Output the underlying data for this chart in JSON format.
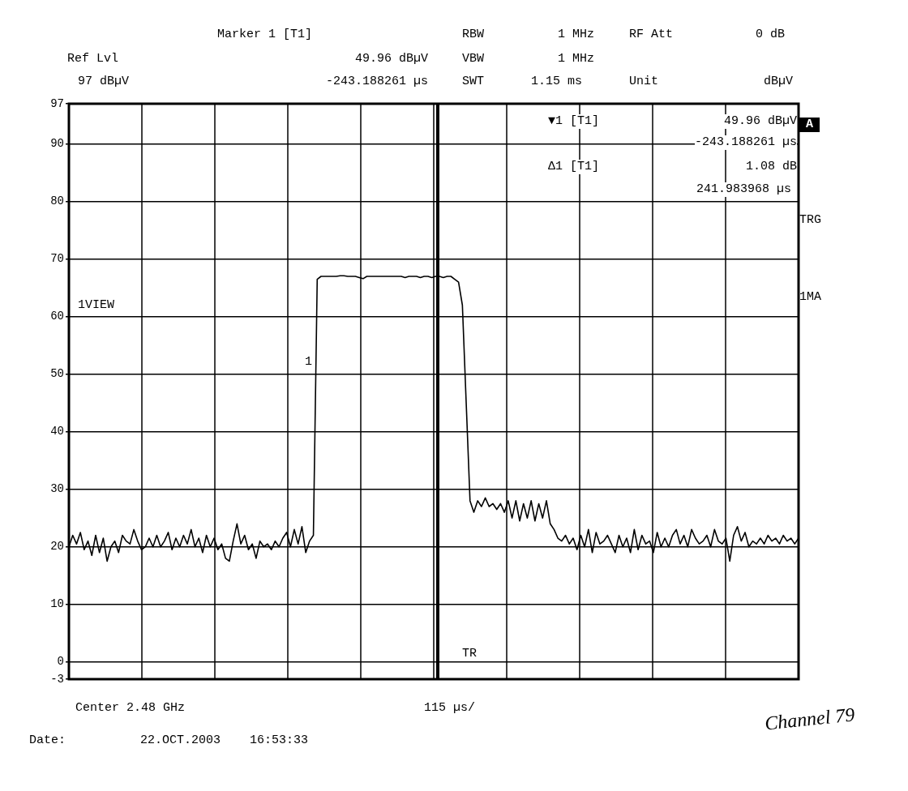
{
  "chart_data": {
    "type": "line",
    "categories": [
      null,
      null,
      null,
      null,
      null,
      null,
      null,
      null,
      null,
      null,
      null,
      null,
      null,
      null,
      null,
      null,
      null,
      null,
      null,
      null,
      null,
      null,
      null,
      null,
      null,
      null,
      null,
      null,
      null,
      null,
      null,
      null,
      null,
      null,
      null,
      null,
      null,
      null,
      null,
      null,
      null,
      null,
      null,
      null,
      null,
      null,
      null,
      null,
      null,
      null,
      null,
      null,
      null,
      null,
      null,
      null,
      null,
      null,
      null,
      null,
      null,
      null,
      null,
      null,
      null,
      null,
      null,
      null,
      null,
      null,
      null,
      null,
      null,
      null,
      null,
      null,
      null,
      null,
      null,
      null,
      null,
      null,
      null,
      null,
      null,
      null,
      null,
      null,
      null,
      null,
      null,
      null,
      null,
      null,
      null,
      null,
      null,
      null,
      null,
      null,
      null,
      null,
      null,
      null,
      null,
      null,
      null,
      null,
      null,
      null,
      null,
      null,
      null,
      null,
      null,
      null,
      null,
      null,
      null,
      null,
      null,
      null,
      null,
      null,
      null,
      null,
      null,
      null,
      null,
      null,
      null,
      null,
      null,
      null,
      null,
      null,
      null,
      null,
      null,
      null,
      null,
      null,
      null,
      null,
      null,
      null,
      null,
      null,
      null,
      null,
      null,
      null,
      null,
      null,
      null,
      null,
      null,
      null,
      null,
      null,
      null,
      null,
      null,
      null,
      null,
      null,
      null,
      null,
      null,
      null,
      null,
      null,
      null,
      null,
      null,
      null,
      null,
      null,
      null,
      null,
      null,
      null,
      null,
      null,
      null,
      null,
      null,
      null,
      null,
      null,
      null,
      null
    ],
    "ylim": [
      -3,
      97
    ],
    "yticks": [
      -3,
      0,
      10,
      20,
      30,
      40,
      50,
      60,
      70,
      80,
      90,
      97
    ],
    "tick_labels": "y",
    "grid": true,
    "legend": false,
    "marker": "none",
    "line_style": "solid",
    "series": [
      {
        "color": "#000000",
        "values": [
          20,
          22,
          20.5,
          22.5,
          19.5,
          21,
          18.5,
          22,
          19,
          21.5,
          17.5,
          20,
          21,
          19,
          22,
          21,
          20.5,
          23,
          21,
          19.5,
          20,
          21.5,
          20,
          22,
          20,
          21,
          22.5,
          19.5,
          21.5,
          20,
          22,
          20.5,
          23,
          20,
          21.5,
          19,
          22,
          20,
          21.5,
          19.5,
          20.5,
          18,
          17.5,
          21,
          24,
          20.5,
          22,
          19.5,
          20.5,
          18,
          21,
          20,
          20.5,
          19.5,
          21,
          20,
          21.5,
          22.5,
          20,
          23,
          20.5,
          23.5,
          19,
          21,
          22,
          66.5,
          67,
          67,
          67,
          67,
          67,
          67.1,
          67.1,
          67,
          67,
          67,
          66.8,
          66.6,
          67,
          67,
          67,
          67,
          67,
          67,
          67,
          67,
          67,
          67,
          66.8,
          67,
          67,
          67,
          66.8,
          67,
          67,
          66.8,
          67,
          67,
          66.8,
          67,
          67,
          66.5,
          66,
          62,
          45,
          28,
          26,
          28,
          27,
          28.5,
          27,
          27.5,
          26.5,
          27.5,
          26,
          28,
          25,
          28,
          24.5,
          27.5,
          25,
          28,
          24.5,
          27.5,
          25,
          28,
          24,
          23,
          21.5,
          21,
          22,
          20.5,
          21.5,
          19.5,
          22,
          20,
          23,
          19,
          22.5,
          20.5,
          21,
          22,
          20.5,
          19,
          22,
          20,
          21.5,
          19,
          23,
          19.5,
          22,
          20.5,
          21,
          19,
          22.5,
          20,
          21.5,
          20,
          22,
          23,
          20.5,
          22,
          20,
          23,
          21.5,
          20.5,
          21,
          22,
          20,
          23,
          21,
          20.5,
          21.5,
          17.5,
          22,
          23.5,
          21,
          22.5,
          20,
          21,
          20.5,
          21.5,
          20.5,
          22,
          21,
          21.5,
          20.5,
          22,
          21,
          21.5,
          20.5,
          21.5
        ]
      }
    ],
    "annotations": [
      "Ref Lvl",
      "97 dBµV",
      "Marker 1 [T1]",
      "49.96 dBµV",
      "-243.188261 µs",
      "RBW",
      "1 MHz",
      "VBW",
      "1 MHz",
      "SWT",
      "1.15 ms",
      "RF Att",
      "0 dB",
      "Unit",
      "dBµV",
      "▼1 [T1]",
      "49.96 dBµV",
      "-243.188261 µs",
      "Δ1 [T1]",
      "1.08 dB",
      "241.983968 µs",
      "A",
      "TRG",
      "1MA",
      "1VIEW",
      "Center 2.48 GHz",
      "115 µs/",
      "Date:",
      "22.OCT.2003",
      "16:53:33",
      "Channel 79",
      "TR",
      "1"
    ]
  }
}
